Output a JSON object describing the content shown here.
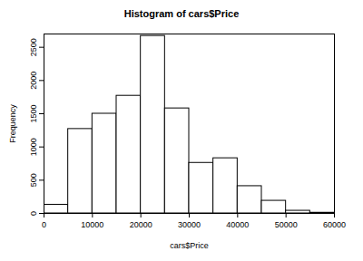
{
  "chart_data": {
    "type": "histogram",
    "title": "Histogram of cars$Price",
    "x_label": "cars$Price",
    "y_label": "Frequency",
    "bins": [
      0,
      5000,
      10000,
      15000,
      20000,
      25000,
      30000,
      35000,
      40000,
      45000,
      50000,
      55000,
      60000
    ],
    "values": [
      130,
      1270,
      1500,
      1770,
      2670,
      1580,
      760,
      830,
      410,
      190,
      40,
      10
    ],
    "color": "#ffffff",
    "xlim": [
      0,
      60000
    ],
    "xticks": [
      0,
      10000,
      20000,
      30000,
      40000,
      50000,
      60000
    ],
    "ylim": [
      0,
      2700
    ],
    "yticks": [
      0,
      500,
      1000,
      1500,
      2000,
      2500
    ],
    "grid": false
  }
}
